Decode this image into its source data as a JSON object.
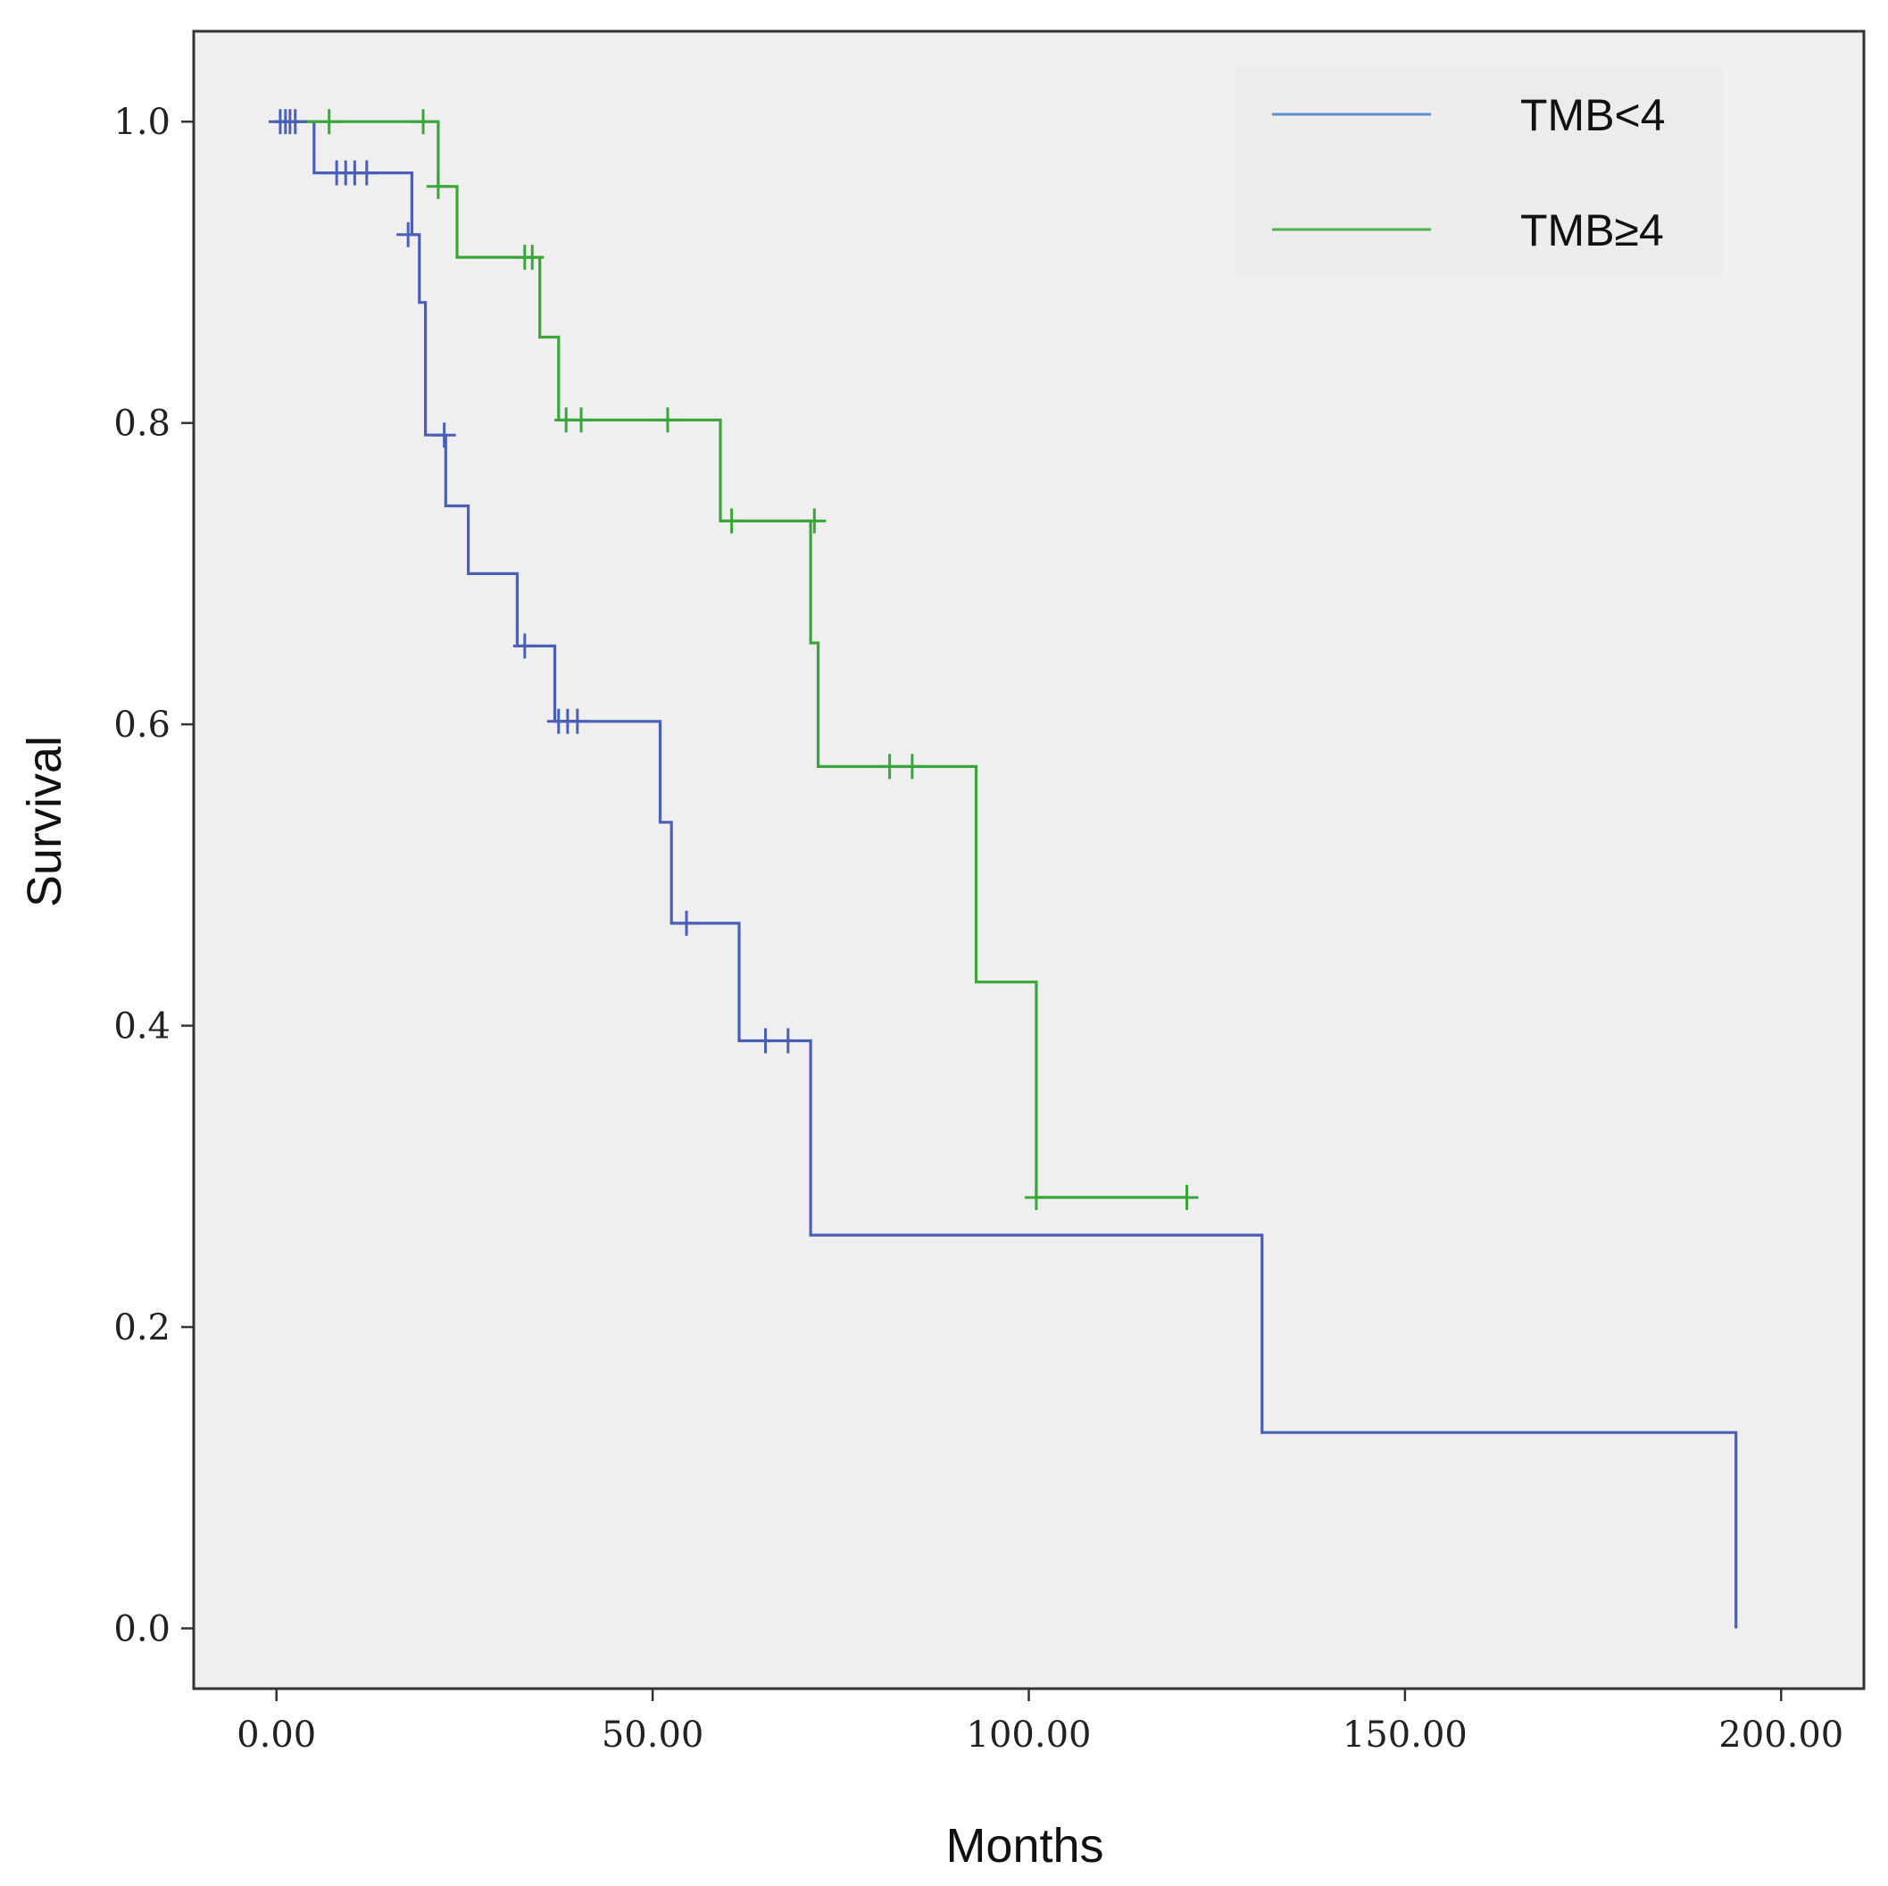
{
  "chart_data": {
    "type": "line",
    "subtype": "kaplan-meier",
    "title": "",
    "xlabel": "Months",
    "ylabel": "Survival",
    "xlim": [
      -11,
      211
    ],
    "ylim": [
      -0.04,
      1.06
    ],
    "x_ticks": [
      0,
      50,
      100,
      150,
      200
    ],
    "x_tick_labels": [
      "0.00",
      "50.00",
      "100.00",
      "150.00",
      "200.00"
    ],
    "y_ticks": [
      0,
      0.2,
      0.4,
      0.6,
      0.8,
      1.0
    ],
    "y_tick_labels": [
      "0.0",
      "0.2",
      "0.4",
      "0.6",
      "0.8",
      "1.0"
    ],
    "grid": false,
    "legend_position": "top-right",
    "series": [
      {
        "name": "TMB<4",
        "color": "#4a5fb5",
        "line_color": "#5b8fd0",
        "steps": [
          [
            0,
            1.0
          ],
          [
            5,
            1.0
          ],
          [
            5,
            0.966
          ],
          [
            18,
            0.966
          ],
          [
            18,
            0.925
          ],
          [
            19,
            0.925
          ],
          [
            19,
            0.88
          ],
          [
            19.8,
            0.88
          ],
          [
            19.8,
            0.792
          ],
          [
            22.5,
            0.792
          ],
          [
            22.5,
            0.745
          ],
          [
            25.5,
            0.745
          ],
          [
            25.5,
            0.7
          ],
          [
            32,
            0.7
          ],
          [
            32,
            0.652
          ],
          [
            37,
            0.652
          ],
          [
            37,
            0.602
          ],
          [
            51,
            0.602
          ],
          [
            51,
            0.535
          ],
          [
            52.5,
            0.535
          ],
          [
            52.5,
            0.468
          ],
          [
            61.5,
            0.468
          ],
          [
            61.5,
            0.39
          ],
          [
            71,
            0.39
          ],
          [
            71,
            0.261
          ],
          [
            131,
            0.261
          ],
          [
            131,
            0.13
          ],
          [
            194,
            0.13
          ],
          [
            194,
            0.0
          ]
        ],
        "censored": [
          [
            0.5,
            1.0
          ],
          [
            1.2,
            1.0
          ],
          [
            1.8,
            1.0
          ],
          [
            2.5,
            1.0
          ],
          [
            8,
            0.966
          ],
          [
            9.2,
            0.966
          ],
          [
            10.4,
            0.966
          ],
          [
            12,
            0.966
          ],
          [
            17.5,
            0.925
          ],
          [
            22.3,
            0.792
          ],
          [
            33,
            0.652
          ],
          [
            37.5,
            0.602
          ],
          [
            38.7,
            0.602
          ],
          [
            40,
            0.602
          ],
          [
            54.5,
            0.468
          ],
          [
            65,
            0.39
          ],
          [
            68,
            0.39
          ]
        ]
      },
      {
        "name": "TMB≥4",
        "color": "#3aa63a",
        "line_color": "#4cb34c",
        "steps": [
          [
            0,
            1.0
          ],
          [
            21.5,
            1.0
          ],
          [
            21.5,
            0.957
          ],
          [
            24,
            0.957
          ],
          [
            24,
            0.91
          ],
          [
            35,
            0.91
          ],
          [
            35,
            0.857
          ],
          [
            37.5,
            0.857
          ],
          [
            37.5,
            0.802
          ],
          [
            59,
            0.802
          ],
          [
            59,
            0.735
          ],
          [
            71,
            0.735
          ],
          [
            71,
            0.654
          ],
          [
            72,
            0.654
          ],
          [
            72,
            0.572
          ],
          [
            93,
            0.572
          ],
          [
            93,
            0.429
          ],
          [
            101,
            0.429
          ],
          [
            101,
            0.286
          ],
          [
            121,
            0.286
          ]
        ],
        "censored": [
          [
            7,
            1.0
          ],
          [
            19.5,
            1.0
          ],
          [
            21.5,
            0.957
          ],
          [
            33,
            0.91
          ],
          [
            34,
            0.91
          ],
          [
            38.5,
            0.802
          ],
          [
            40.5,
            0.802
          ],
          [
            52,
            0.802
          ],
          [
            60.5,
            0.735
          ],
          [
            71.5,
            0.735
          ],
          [
            81.5,
            0.572
          ],
          [
            84.5,
            0.572
          ],
          [
            101,
            0.286
          ],
          [
            121,
            0.286
          ]
        ]
      }
    ]
  }
}
